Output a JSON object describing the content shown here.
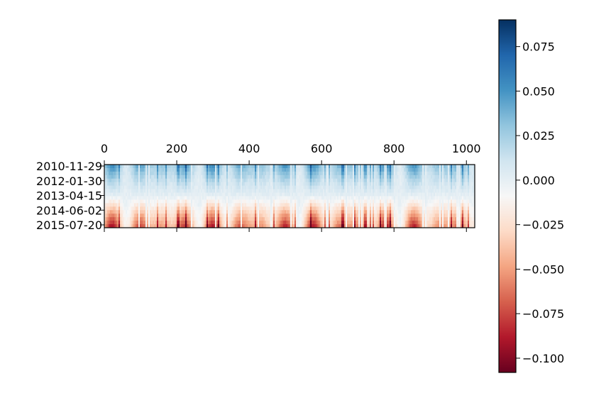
{
  "chart_data": {
    "type": "heatmap",
    "title": "",
    "xlabel": "",
    "ylabel": "",
    "x_range": [
      0,
      1023
    ],
    "x_ticks": [
      0,
      200,
      400,
      600,
      800,
      1000
    ],
    "x_tick_labels": [
      "0",
      "200",
      "400",
      "600",
      "800",
      "1000"
    ],
    "x_axis_position": "top",
    "y_tick_labels": [
      "2010-11-29",
      "2012-01-30",
      "2013-04-15",
      "2014-06-02",
      "2015-07-20"
    ],
    "colormap": "RdBu",
    "color_range": [
      -0.108,
      0.09
    ],
    "colorbar_ticks": [
      0.075,
      0.05,
      0.025,
      0.0,
      -0.025,
      -0.05,
      -0.075,
      -0.1
    ],
    "colorbar_tick_labels": [
      "0.075",
      "0.050",
      "0.025",
      "0.000",
      "−0.025",
      "−0.050",
      "−0.075",
      "−0.100"
    ],
    "colorbar_position": "right",
    "grid": false,
    "row_profile": [
      {
        "row_date": "2010-11-29",
        "typical_value": 0.035
      },
      {
        "row_date": "2012-01-30",
        "typical_value": 0.015
      },
      {
        "row_date": "2013-04-15",
        "typical_value": 0.0
      },
      {
        "row_date": "2014-06-02",
        "typical_value": -0.03
      },
      {
        "row_date": "2015-07-20",
        "typical_value": -0.06
      }
    ]
  }
}
